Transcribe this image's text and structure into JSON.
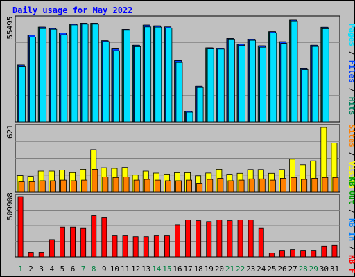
{
  "colors": {
    "background": "#c0c0c0",
    "plot_background": "#c0c0c0",
    "grid": "#808080",
    "title": "#0000ff",
    "hits": "#00805c",
    "files": "#0040ff",
    "pages": "#00e0ff",
    "visits": "#ffff00",
    "sites": "#ff8000",
    "kbin": "#0080ff",
    "kbout": "#00a000",
    "kbf": "#ff0000",
    "weekday_label": "#000000",
    "weekend_label": "#008040"
  },
  "chart_data": [
    {
      "type": "bar",
      "panel": "hits",
      "title": "Daily usage for May 2022",
      "categories": [
        "1",
        "2",
        "3",
        "4",
        "5",
        "6",
        "7",
        "8",
        "9",
        "10",
        "11",
        "12",
        "13",
        "14",
        "15",
        "16",
        "17",
        "18",
        "19",
        "20",
        "21",
        "22",
        "23",
        "24",
        "25",
        "26",
        "27",
        "28",
        "29",
        "30",
        "31"
      ],
      "weekend_days": [
        "1",
        "7",
        "8",
        "14",
        "15",
        "21",
        "22",
        "28",
        "29"
      ],
      "ymax_label": "55495",
      "ylim": [
        0,
        55495
      ],
      "legend": [
        "Hits",
        "Files",
        "Pages"
      ],
      "series": [
        {
          "name": "Hits",
          "values": [
            31000,
            47300,
            51700,
            51000,
            48500,
            53400,
            53800,
            53800,
            44300,
            39800,
            50400,
            41800,
            52800,
            52400,
            51800,
            33400,
            5800,
            19500,
            40400,
            40200,
            45500,
            42400,
            45000,
            41500,
            49200,
            43700,
            55495,
            29300,
            41800,
            51600,
            0
          ]
        },
        {
          "name": "Files",
          "values": [
            31000,
            47300,
            51700,
            51000,
            48500,
            53400,
            53800,
            53800,
            44300,
            39800,
            50400,
            41800,
            52800,
            52400,
            51800,
            33400,
            5800,
            19500,
            40400,
            40200,
            45500,
            42400,
            45000,
            41500,
            49200,
            43700,
            55495,
            29300,
            41800,
            51600,
            0
          ]
        },
        {
          "name": "Pages",
          "values": [
            30000,
            46300,
            50900,
            50500,
            47500,
            52900,
            53300,
            53300,
            43800,
            38800,
            49900,
            41000,
            51800,
            51700,
            51200,
            32400,
            5300,
            18800,
            39800,
            39700,
            44800,
            41600,
            44500,
            40700,
            48600,
            42800,
            54700,
            28500,
            41100,
            50800,
            0
          ]
        }
      ]
    },
    {
      "type": "bar",
      "panel": "visits",
      "ymax_label": "621",
      "ylim": [
        0,
        621
      ],
      "legend": [
        "Visits",
        "Sites"
      ],
      "series": [
        {
          "name": "Visits",
          "values": [
            156,
            150,
            200,
            200,
            210,
            185,
            218,
            408,
            233,
            227,
            236,
            162,
            200,
            180,
            171,
            184,
            184,
            155,
            181,
            218,
            170,
            178,
            215,
            215,
            178,
            215,
            315,
            262,
            299,
            621,
            470
          ]
        },
        {
          "name": "Sites",
          "values": [
            97,
            97,
            107,
            107,
            113,
            107,
            113,
            218,
            143,
            138,
            143,
            113,
            120,
            113,
            107,
            107,
            113,
            84,
            120,
            131,
            107,
            113,
            125,
            125,
            113,
            131,
            138,
            120,
            131,
            138,
            138
          ]
        }
      ]
    },
    {
      "type": "bar",
      "panel": "kbytes",
      "ymax_label": "509908",
      "ylim": [
        0,
        509908
      ],
      "legend": [
        "KB F",
        "KB In",
        "KB Out"
      ],
      "series": [
        {
          "name": "KB F",
          "values": [
            509908,
            38000,
            38000,
            147000,
            251000,
            251000,
            245000,
            349000,
            331000,
            178000,
            178000,
            172000,
            172000,
            178000,
            178000,
            270000,
            313000,
            307000,
            300000,
            313000,
            307000,
            313000,
            313000,
            245000,
            31000,
            55000,
            61000,
            55000,
            55000,
            92000,
            98000
          ]
        },
        {
          "name": "KB In",
          "values": [
            0,
            0,
            0,
            0,
            0,
            0,
            0,
            0,
            0,
            0,
            0,
            0,
            0,
            0,
            0,
            0,
            0,
            0,
            0,
            0,
            0,
            0,
            0,
            0,
            0,
            0,
            0,
            0,
            0,
            0,
            0
          ]
        },
        {
          "name": "KB Out",
          "values": [
            0,
            0,
            0,
            0,
            0,
            0,
            0,
            0,
            0,
            0,
            0,
            0,
            0,
            0,
            0,
            0,
            0,
            0,
            0,
            0,
            0,
            0,
            0,
            0,
            0,
            0,
            0,
            0,
            0,
            0,
            0
          ]
        }
      ]
    }
  ]
}
